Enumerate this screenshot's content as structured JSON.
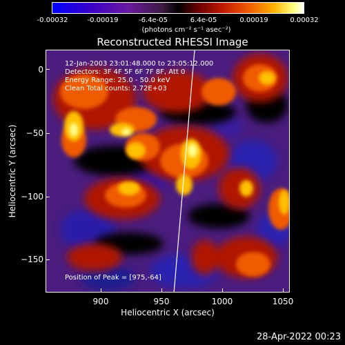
{
  "colorbar": {
    "labels": [
      "-0.00032",
      "-0.00019",
      "-6.4e-05",
      "6.4e-05",
      "0.00019",
      "0.00032"
    ],
    "units": "(photons cm⁻² s⁻¹ asec⁻²)"
  },
  "title": "Reconstructed RHESSI Image",
  "info": {
    "time_range": "12-Jan-2003 23:01:48.000 to 23:05:12.000",
    "detectors": "Detectors: 3F 4F 5F 6F 7F 8F, Att 0",
    "energy": "Energy Range: 25.0 - 50.0 keV",
    "clean": "Clean     Total counts: 2.72E+03",
    "peak": "Position of Peak = [975,-64]"
  },
  "axes": {
    "xlabel": "Heliocentric X (arcsec)",
    "ylabel": "Heliocentric Y (arcsec)",
    "xticks": [
      "900",
      "950",
      "1000",
      "1050"
    ],
    "yticks": [
      "0",
      "−50",
      "−100",
      "−150"
    ]
  },
  "footer": "28-Apr-2022 00:23"
}
